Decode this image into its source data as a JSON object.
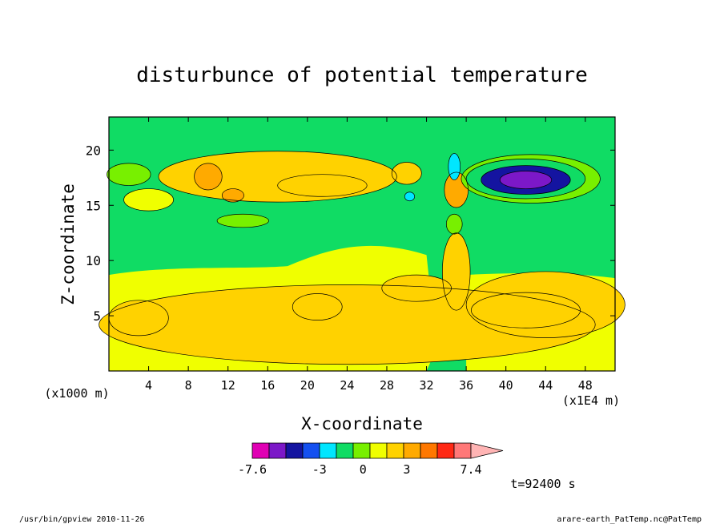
{
  "chart_data": {
    "type": "heatmap",
    "title": "disturbunce of potential temperature",
    "xlabel": "X-coordinate",
    "ylabel": "Z-coordinate",
    "x_unit_left": "(x1000 m)",
    "x_unit_right": "(x1E4 m)",
    "xlim": [
      0,
      51
    ],
    "ylim": [
      0,
      23
    ],
    "xticks": [
      4,
      8,
      12,
      16,
      20,
      24,
      28,
      32,
      36,
      40,
      44,
      48
    ],
    "yticks": [
      5,
      10,
      15,
      20
    ],
    "time_label": "t=92400 s",
    "colorbar": {
      "min": -7.6,
      "max": 7.4,
      "tick_labels": [
        {
          "value": -7.6,
          "label": "-7.6"
        },
        {
          "value": -3,
          "label": "-3"
        },
        {
          "value": 0,
          "label": "0"
        },
        {
          "value": 3,
          "label": "3"
        },
        {
          "value": 7.4,
          "label": "7.4"
        }
      ],
      "colors": [
        "#e000b4",
        "#7c18c8",
        "#1414a0",
        "#1450f0",
        "#00e6ff",
        "#10dc64",
        "#78f000",
        "#f0ff00",
        "#ffd200",
        "#ffaa00",
        "#ff7800",
        "#ff2814",
        "#ff7878",
        "#ffb4b4"
      ]
    },
    "features": [
      {
        "kind": "positive",
        "x": 10.0,
        "z": 17.6,
        "v": 2.8
      },
      {
        "kind": "positive",
        "x": 13.0,
        "z": 17.0,
        "v": 1.8
      },
      {
        "kind": "positive",
        "x": 21.5,
        "z": 16.8,
        "v": 2.2
      },
      {
        "kind": "positive",
        "x": 30.0,
        "z": 17.9,
        "v": 1.5
      },
      {
        "kind": "positive",
        "x": 35.0,
        "z": 16.5,
        "v": 2.5
      },
      {
        "kind": "positive",
        "x": 43.0,
        "z": 5.5,
        "v": 1.5
      },
      {
        "kind": "negative",
        "x": 42.0,
        "z": 17.3,
        "v": -7.0
      },
      {
        "kind": "negative",
        "x": 2.0,
        "z": 17.5,
        "v": -0.8
      },
      {
        "kind": "negative",
        "x": 13.5,
        "z": 13.6,
        "v": -0.6
      },
      {
        "kind": "negative",
        "x": 34.8,
        "z": 18.5,
        "v": -2.5
      }
    ]
  },
  "footer": {
    "left": "/usr/bin/gpview  2010-11-26",
    "right": "arare-earth_PatTemp.nc@PatTemp"
  }
}
